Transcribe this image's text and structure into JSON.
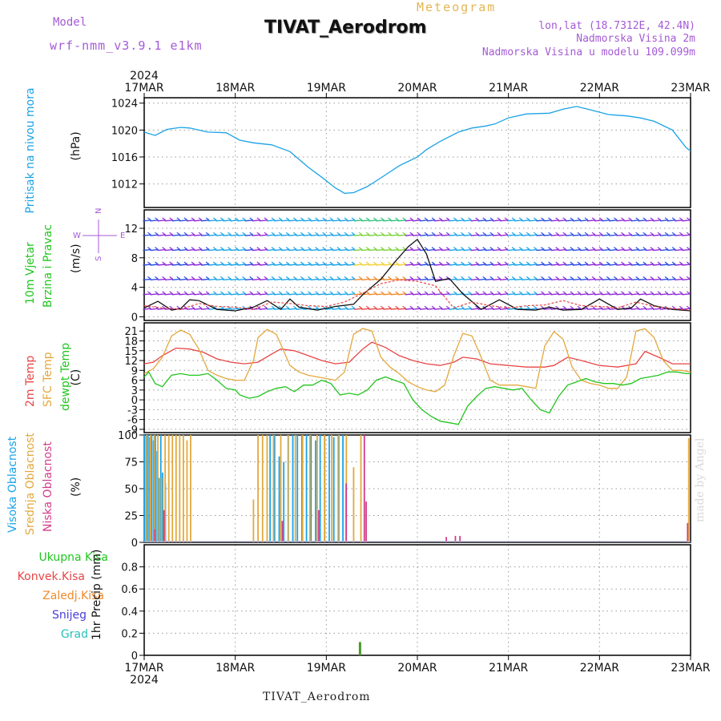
{
  "header": {
    "meteogram": "Meteogram",
    "station_title": "TIVAT_Aerodrom",
    "model_label": "Model",
    "model_name": "wrf-nmm_v3.9.1  e1km",
    "lonlat": "lon,lat (18.7312E, 42.4N)",
    "elevation": "Nadmorska Visina 2m",
    "model_elevation": "Nadmorska Visina u modelu 109.099m",
    "footer": "TIVAT_Aerodrom",
    "watermark": "made by Angel"
  },
  "colors": {
    "pressure": "#1ba3e6",
    "temp2m": "#e84545",
    "sfc_temp": "#e3a83d",
    "dewpoint": "#22c51f",
    "high_cloud": "#1ba3e6",
    "mid_cloud": "#e3a83d",
    "low_cloud": "#d23c8a",
    "wind_speed": "#111111",
    "gust": "#e84545",
    "precip": "#4c9a2a"
  },
  "chart_data": [
    {
      "type": "line",
      "panel": "pressure",
      "x_labels_top": [
        "17MAR",
        "18MAR",
        "19MAR",
        "20MAR",
        "21MAR",
        "22MAR",
        "23MAR"
      ],
      "year_top": "2024",
      "ylabel_lines": [
        "Pritisak na nivou mora"
      ],
      "unit": "(hPa)",
      "yticks": [
        1012,
        1016,
        1020,
        1024
      ],
      "ylim": [
        1008.5,
        1024.8
      ],
      "grid": true,
      "series": [
        {
          "x": [
            0,
            0.12,
            0.25,
            0.4,
            0.5,
            0.7,
            0.9,
            1.05,
            1.2,
            1.4,
            1.6,
            1.8,
            1.95,
            2.1,
            2.2,
            2.3,
            2.45,
            2.6,
            2.8,
            3.0,
            3.1,
            3.25,
            3.45,
            3.6,
            3.75,
            3.85,
            4.0,
            4.2,
            4.45,
            4.6,
            4.75,
            4.9,
            5.1,
            5.3,
            5.45,
            5.6,
            5.8,
            5.95,
            6.0
          ],
          "values": [
            1019.7,
            1019.2,
            1020.1,
            1020.4,
            1020.3,
            1019.7,
            1019.6,
            1018.5,
            1018.1,
            1017.8,
            1016.8,
            1014.5,
            1013.0,
            1011.4,
            1010.6,
            1010.7,
            1011.6,
            1012.9,
            1014.7,
            1016.0,
            1017.1,
            1018.3,
            1019.7,
            1020.3,
            1020.6,
            1020.9,
            1021.8,
            1022.4,
            1022.5,
            1023.1,
            1023.5,
            1023.0,
            1022.3,
            1022.1,
            1021.8,
            1021.3,
            1020.0,
            1017.4,
            1016.9
          ]
        }
      ]
    },
    {
      "type": "line",
      "panel": "wind",
      "ylabel_lines": [
        "10m Vjetar",
        "Brzina i Pravac"
      ],
      "unit": "(m/s)",
      "compass": {
        "n": "N",
        "s": "S",
        "e": "E",
        "w": "W"
      },
      "yticks": [
        0,
        4,
        8,
        12
      ],
      "ylim": [
        -0.5,
        14.5
      ],
      "grid": true,
      "series": [
        {
          "name": "wind_speed",
          "x": [
            0,
            0.15,
            0.3,
            0.4,
            0.5,
            0.6,
            0.8,
            1.0,
            1.2,
            1.35,
            1.5,
            1.6,
            1.7,
            1.9,
            2.1,
            2.3,
            2.4,
            2.6,
            2.75,
            2.9,
            3.0,
            3.1,
            3.2,
            3.35,
            3.5,
            3.7,
            3.9,
            4.1,
            4.3,
            4.45,
            4.6,
            4.8,
            5.0,
            5.2,
            5.35,
            5.45,
            5.6,
            5.8,
            6.0
          ],
          "values": [
            1.2,
            2.1,
            0.9,
            1.1,
            2.3,
            2.2,
            1.0,
            0.8,
            1.3,
            2.2,
            1.0,
            2.4,
            1.3,
            0.9,
            1.4,
            1.7,
            3.0,
            5.1,
            7.4,
            9.5,
            10.5,
            8.5,
            4.8,
            5.2,
            3.1,
            1.0,
            2.3,
            1.0,
            0.9,
            1.3,
            0.9,
            1.0,
            2.4,
            1.0,
            1.2,
            2.4,
            1.5,
            1.0,
            0.8
          ]
        },
        {
          "name": "gust",
          "x": [
            0,
            0.2,
            0.4,
            0.6,
            0.8,
            1.0,
            1.2,
            1.4,
            1.6,
            1.8,
            2.0,
            2.2,
            2.4,
            2.6,
            2.8,
            3.0,
            3.2,
            3.4,
            3.6,
            3.8,
            4.0,
            4.2,
            4.4,
            4.6,
            4.8,
            5.0,
            5.2,
            5.4,
            5.6,
            5.8,
            6.0
          ],
          "values": [
            1.5,
            1.2,
            1.0,
            1.8,
            1.4,
            1.3,
            1.0,
            2.0,
            1.8,
            1.5,
            1.4,
            2.0,
            3.2,
            4.5,
            5.0,
            4.8,
            4.2,
            1.2,
            2.0,
            1.5,
            1.2,
            1.5,
            1.6,
            2.2,
            1.5,
            1.4,
            1.2,
            2.0,
            1.4,
            1.1,
            0.9
          ]
        }
      ]
    },
    {
      "type": "line",
      "panel": "temperature",
      "ylabel_lines": [
        "2m Temp",
        "SFC Temp",
        "dewpt Temp"
      ],
      "unit": "(C)",
      "yticks": [
        -9,
        -6,
        -3,
        0,
        3,
        6,
        9,
        12,
        15,
        18,
        21
      ],
      "ylim": [
        -10,
        23.5
      ],
      "grid": true,
      "series": [
        {
          "name": "2m Temp",
          "x": [
            0,
            0.1,
            0.2,
            0.35,
            0.5,
            0.65,
            0.8,
            0.95,
            1.1,
            1.25,
            1.4,
            1.5,
            1.65,
            1.8,
            1.95,
            2.1,
            2.25,
            2.4,
            2.5,
            2.65,
            2.8,
            2.95,
            3.1,
            3.25,
            3.4,
            3.5,
            3.65,
            3.8,
            4.0,
            4.2,
            4.4,
            4.5,
            4.65,
            4.8,
            5.0,
            5.2,
            5.4,
            5.5,
            5.65,
            5.8,
            6.0
          ],
          "values": [
            11,
            11.5,
            13.5,
            15.8,
            15.5,
            14.5,
            12.5,
            11.5,
            11,
            11.5,
            14,
            15.5,
            15,
            13.5,
            12,
            11,
            11.5,
            15.5,
            17.6,
            16,
            13.5,
            12,
            11,
            10.5,
            11.5,
            13,
            12.5,
            11,
            10.5,
            10,
            10,
            10.5,
            13,
            12,
            10.5,
            10,
            11,
            14.8,
            13,
            11,
            11
          ]
        },
        {
          "name": "SFC Temp",
          "x": [
            0,
            0.1,
            0.2,
            0.3,
            0.4,
            0.5,
            0.6,
            0.7,
            0.8,
            0.9,
            1.0,
            1.1,
            1.2,
            1.25,
            1.35,
            1.45,
            1.5,
            1.6,
            1.7,
            1.8,
            1.9,
            2.0,
            2.1,
            2.2,
            2.3,
            2.4,
            2.5,
            2.6,
            2.7,
            2.8,
            2.9,
            3.0,
            3.1,
            3.2,
            3.3,
            3.4,
            3.5,
            3.6,
            3.7,
            3.8,
            3.9,
            4.0,
            4.1,
            4.2,
            4.3,
            4.4,
            4.5,
            4.6,
            4.7,
            4.8,
            4.9,
            5.0,
            5.1,
            5.2,
            5.3,
            5.4,
            5.5,
            5.6,
            5.7,
            5.8,
            5.9,
            6.0
          ],
          "values": [
            8,
            9.5,
            13,
            19.5,
            21.3,
            20,
            15.5,
            9,
            7.5,
            6.5,
            6,
            6,
            12,
            19,
            21.5,
            20,
            17,
            10.5,
            8.5,
            7.5,
            7,
            6.5,
            6,
            8.5,
            20,
            21.8,
            21,
            13,
            10,
            8,
            5.5,
            4,
            3,
            2.5,
            4.5,
            13.5,
            20.3,
            19.5,
            13,
            6,
            4.5,
            4.5,
            4.5,
            4,
            3.5,
            16.5,
            20.8,
            18.5,
            10,
            6,
            5,
            4.5,
            3.5,
            3.5,
            7,
            21,
            21.7,
            19,
            12,
            9,
            9,
            8.5
          ]
        },
        {
          "name": "dewpt Temp",
          "x": [
            0,
            0.05,
            0.12,
            0.2,
            0.3,
            0.4,
            0.5,
            0.6,
            0.7,
            0.8,
            0.9,
            1.0,
            1.05,
            1.15,
            1.25,
            1.35,
            1.45,
            1.55,
            1.65,
            1.75,
            1.85,
            1.95,
            2.05,
            2.15,
            2.25,
            2.35,
            2.45,
            2.55,
            2.65,
            2.75,
            2.85,
            2.95,
            3.05,
            3.15,
            3.25,
            3.35,
            3.45,
            3.55,
            3.65,
            3.75,
            3.85,
            3.95,
            4.05,
            4.15,
            4.25,
            4.35,
            4.45,
            4.55,
            4.65,
            4.75,
            4.85,
            4.95,
            5.05,
            5.15,
            5.25,
            5.35,
            5.45,
            5.55,
            5.65,
            5.75,
            5.85,
            5.95,
            6.0
          ],
          "values": [
            7,
            8.5,
            5,
            4,
            7.5,
            8,
            7.5,
            7.5,
            8,
            6,
            3.5,
            3,
            1.5,
            0.5,
            1,
            2.5,
            3.5,
            4,
            2.5,
            4.5,
            4.5,
            6,
            5,
            1.5,
            2,
            1.5,
            3,
            6,
            7,
            6,
            5,
            0,
            -3,
            -5,
            -6.5,
            -7,
            -7.5,
            -2,
            1,
            3.5,
            4,
            3.5,
            3,
            3.5,
            0,
            -3,
            -4,
            1,
            4.5,
            5.5,
            6.5,
            5.5,
            5,
            5,
            4.5,
            5,
            6.5,
            7,
            7.5,
            8.5,
            8.5,
            8,
            8
          ]
        }
      ]
    },
    {
      "type": "bar",
      "panel": "clouds",
      "ylabel_lines": [
        "Visoka Oblacnost",
        "Srednja Oblacnost",
        "Niska Oblacnost"
      ],
      "unit": "(%)",
      "yticks": [
        0,
        25,
        50,
        75,
        100
      ],
      "ylim": [
        0,
        100
      ],
      "grid": true,
      "series": [
        {
          "name": "Visoka Oblacnost",
          "x": [
            0.02,
            0.04,
            0.06,
            0.08,
            0.1,
            0.12,
            0.14,
            0.16,
            0.18,
            0.2,
            0.22,
            0.25,
            1.4,
            1.45,
            1.5,
            1.55,
            1.6,
            1.65,
            1.7,
            1.75,
            1.8,
            1.85,
            1.9,
            1.95,
            2.0,
            2.05,
            2.1,
            2.15,
            2.2
          ],
          "values": [
            100,
            100,
            100,
            98,
            100,
            95,
            100,
            85,
            60,
            100,
            65,
            55,
            100,
            100,
            80,
            75,
            100,
            100,
            100,
            100,
            100,
            100,
            95,
            100,
            100,
            100,
            98,
            100,
            100
          ]
        },
        {
          "name": "Srednja Oblacnost",
          "x": [
            0.03,
            0.07,
            0.11,
            0.15,
            0.19,
            0.23,
            0.27,
            0.31,
            0.35,
            0.39,
            0.43,
            0.47,
            0.51,
            1.2,
            1.25,
            1.3,
            1.35,
            1.42,
            1.5,
            1.58,
            1.66,
            1.74,
            1.82,
            1.9,
            1.98,
            2.06,
            2.14,
            2.22,
            2.3,
            2.38,
            5.98
          ],
          "values": [
            100,
            100,
            100,
            100,
            60,
            100,
            100,
            100,
            100,
            100,
            100,
            95,
            100,
            40,
            100,
            100,
            100,
            100,
            100,
            100,
            100,
            100,
            100,
            100,
            100,
            100,
            100,
            100,
            70,
            100,
            97
          ]
        },
        {
          "name": "Niska Oblacnost",
          "x": [
            0.1,
            0.2,
            1.5,
            1.9,
            2.2,
            2.4,
            2.42,
            3.3,
            3.4,
            3.45,
            5.95
          ],
          "values": [
            12,
            30,
            20,
            30,
            55,
            100,
            38,
            5,
            6,
            6,
            18
          ]
        }
      ]
    },
    {
      "type": "bar",
      "panel": "precip",
      "x_labels_bottom": [
        "17MAR",
        "18MAR",
        "19MAR",
        "20MAR",
        "21MAR",
        "22MAR",
        "23MAR"
      ],
      "year_bottom": "2024",
      "unit": "1hr Precip (mm)",
      "legend": [
        "Ukupna Kisa",
        "Konvek.Kisa",
        "Zaledj.Kisa",
        "Snijeg",
        "Grad"
      ],
      "yticks": [
        0,
        0.2,
        0.4,
        0.6,
        0.8
      ],
      "ylim": [
        0,
        1.0
      ],
      "grid": true,
      "series": [
        {
          "name": "Ukupna Kisa",
          "x": [
            2.37
          ],
          "values": [
            0.12
          ]
        }
      ]
    }
  ]
}
